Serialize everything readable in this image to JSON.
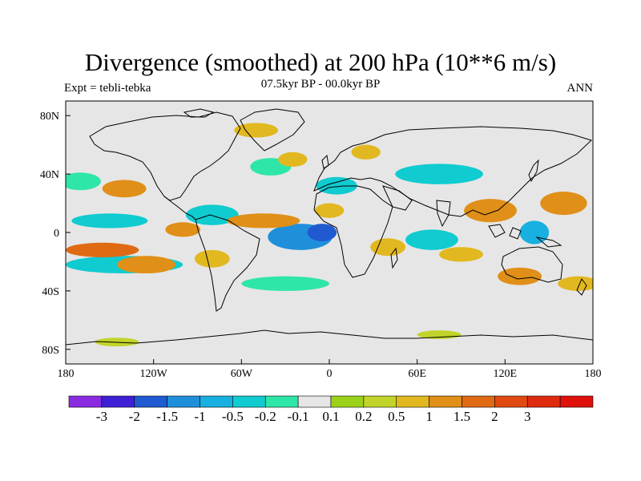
{
  "title": "Divergence (smoothed) at 200 hPa (10**6 m/s)",
  "experiment_label": "Expt = tebli-tebka",
  "period_label": "07.5kyr BP - 00.0kyr BP",
  "season_label": "ANN",
  "map": {
    "projection": "cylindrical equidistant",
    "lon_range": [
      -180,
      180
    ],
    "lat_range": [
      -90,
      90
    ],
    "lon_ticks": [
      {
        "value": -180,
        "label": "180"
      },
      {
        "value": -120,
        "label": "120W"
      },
      {
        "value": -60,
        "label": "60W"
      },
      {
        "value": 0,
        "label": "0"
      },
      {
        "value": 60,
        "label": "60E"
      },
      {
        "value": 120,
        "label": "120E"
      },
      {
        "value": 180,
        "label": "180"
      }
    ],
    "lat_ticks": [
      {
        "value": 80,
        "label": "80N"
      },
      {
        "value": 40,
        "label": "40N"
      },
      {
        "value": 0,
        "label": "0"
      },
      {
        "value": -40,
        "label": "40S"
      },
      {
        "value": -80,
        "label": "80S"
      }
    ],
    "background_color": "#e6e6e6",
    "coastline_color": "#000000"
  },
  "colorbar": {
    "colors": [
      "#8a2be2",
      "#3f1fd6",
      "#1f5ad1",
      "#1f8fdb",
      "#17b0e0",
      "#10cbd0",
      "#2ee6a8",
      "#e6e6e6",
      "#9ad21a",
      "#c2d42a",
      "#e2b820",
      "#e08f18",
      "#e06a14",
      "#e04a10",
      "#e02a0e",
      "#e0100a"
    ],
    "labels": [
      "-3",
      "-2",
      "-1.5",
      "-1",
      "-0.5",
      "-0.2",
      "-0.1",
      "0.1",
      "0.2",
      "0.5",
      "1",
      "1.5",
      "2",
      "3"
    ]
  },
  "chart_data": {
    "type": "heatmap",
    "title": "Divergence (smoothed) at 200 hPa (10**6 m/s)",
    "subtitle": "07.5kyr BP - 00.0kyr BP",
    "experiment": "Expt = tebli-tebka",
    "season": "ANN",
    "levels": [
      -3,
      -2,
      -1.5,
      -1,
      -0.5,
      -0.2,
      -0.1,
      0.1,
      0.2,
      0.5,
      1,
      1.5,
      2,
      3
    ],
    "anomaly_features": [
      {
        "lon": -20,
        "lat": -3,
        "rx": 22,
        "ry": 9,
        "value": -1.5
      },
      {
        "lon": -5,
        "lat": 0,
        "rx": 10,
        "ry": 6,
        "value": -2
      },
      {
        "lon": -80,
        "lat": 12,
        "rx": 18,
        "ry": 7,
        "value": -0.5
      },
      {
        "lon": -150,
        "lat": 8,
        "rx": 26,
        "ry": 5,
        "value": -0.5
      },
      {
        "lon": -140,
        "lat": -22,
        "rx": 40,
        "ry": 6,
        "value": -0.5
      },
      {
        "lon": 70,
        "lat": -5,
        "rx": 18,
        "ry": 7,
        "value": -0.5
      },
      {
        "lon": 75,
        "lat": 40,
        "rx": 30,
        "ry": 7,
        "value": -0.5
      },
      {
        "lon": 5,
        "lat": 32,
        "rx": 14,
        "ry": 6,
        "value": -0.5
      },
      {
        "lon": 140,
        "lat": 0,
        "rx": 10,
        "ry": 8,
        "value": -1
      },
      {
        "lon": -40,
        "lat": 45,
        "rx": 14,
        "ry": 6,
        "value": -0.2
      },
      {
        "lon": -30,
        "lat": -35,
        "rx": 30,
        "ry": 5,
        "value": -0.2
      },
      {
        "lon": -170,
        "lat": 35,
        "rx": 14,
        "ry": 6,
        "value": -0.2
      },
      {
        "lon": -155,
        "lat": -12,
        "rx": 25,
        "ry": 5,
        "value": 1.5
      },
      {
        "lon": -125,
        "lat": -22,
        "rx": 20,
        "ry": 6,
        "value": 1
      },
      {
        "lon": -45,
        "lat": 8,
        "rx": 25,
        "ry": 5,
        "value": 1
      },
      {
        "lon": -140,
        "lat": 30,
        "rx": 15,
        "ry": 6,
        "value": 1
      },
      {
        "lon": -100,
        "lat": 2,
        "rx": 12,
        "ry": 5,
        "value": 1
      },
      {
        "lon": -80,
        "lat": -18,
        "rx": 12,
        "ry": 6,
        "value": 0.5
      },
      {
        "lon": 40,
        "lat": -10,
        "rx": 12,
        "ry": 6,
        "value": 0.5
      },
      {
        "lon": 0,
        "lat": 15,
        "rx": 10,
        "ry": 5,
        "value": 0.5
      },
      {
        "lon": 110,
        "lat": 15,
        "rx": 18,
        "ry": 8,
        "value": 1
      },
      {
        "lon": 160,
        "lat": 20,
        "rx": 16,
        "ry": 8,
        "value": 1
      },
      {
        "lon": 130,
        "lat": -30,
        "rx": 15,
        "ry": 6,
        "value": 1
      },
      {
        "lon": 90,
        "lat": -15,
        "rx": 15,
        "ry": 5,
        "value": 0.5
      },
      {
        "lon": -50,
        "lat": 70,
        "rx": 15,
        "ry": 5,
        "value": 0.5
      },
      {
        "lon": -25,
        "lat": 50,
        "rx": 10,
        "ry": 5,
        "value": 0.5
      },
      {
        "lon": 25,
        "lat": 55,
        "rx": 10,
        "ry": 5,
        "value": 0.5
      },
      {
        "lon": 170,
        "lat": -35,
        "rx": 14,
        "ry": 5,
        "value": 0.5
      },
      {
        "lon": -145,
        "lat": -75,
        "rx": 15,
        "ry": 3,
        "value": 0.2
      },
      {
        "lon": 75,
        "lat": -70,
        "rx": 15,
        "ry": 3,
        "value": 0.2
      }
    ]
  }
}
